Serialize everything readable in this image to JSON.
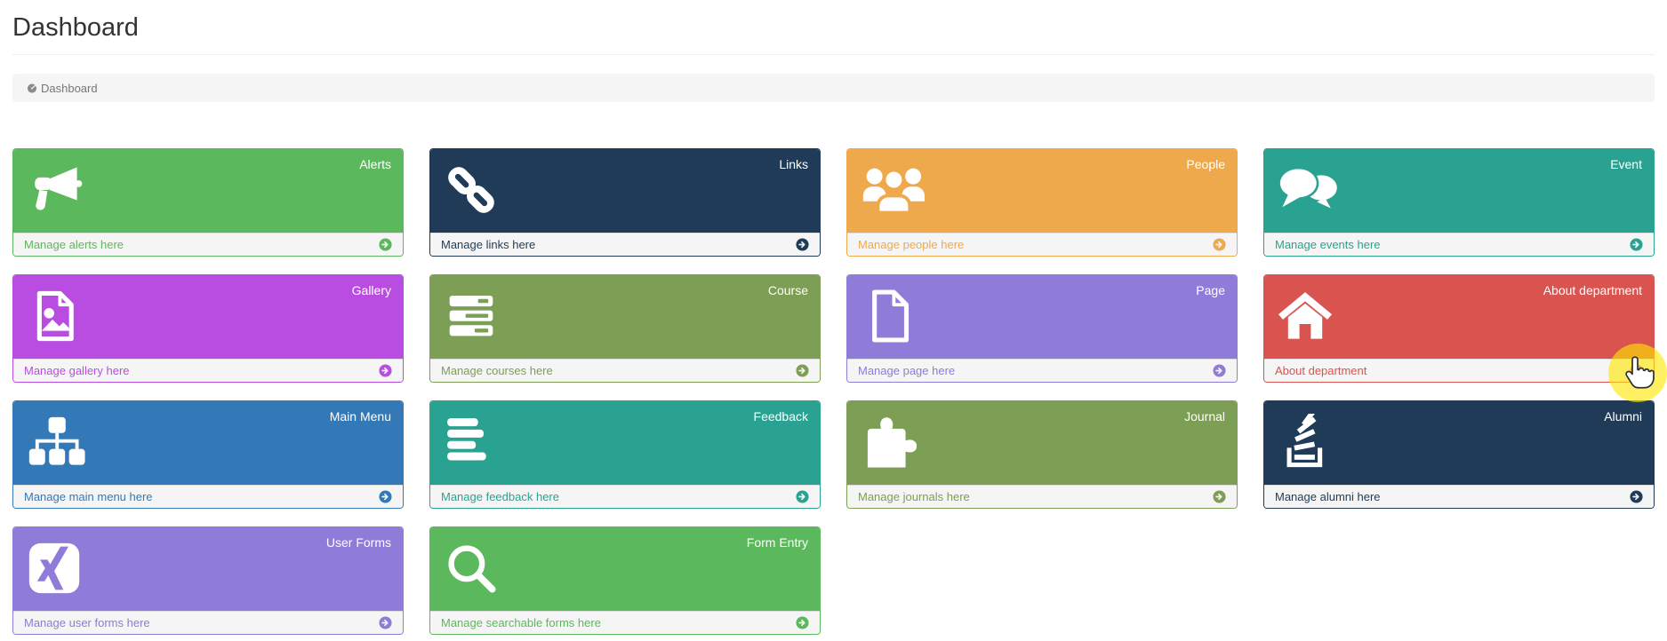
{
  "page": {
    "title": "Dashboard"
  },
  "breadcrumb": {
    "items": [
      {
        "label": "Dashboard",
        "icon": "dashboard-icon",
        "active": true
      }
    ]
  },
  "footer_arrow_icon": "arrow-circle-right-icon",
  "cursor": {
    "shape": "hand-pointer-cursor",
    "highlight_color": "#ffe600",
    "over": "card-about-department-arrow"
  },
  "cards": [
    {
      "title": "Alerts",
      "footer": "Manage alerts here",
      "color": "#5cb85c",
      "icon": "bullhorn-icon"
    },
    {
      "title": "Links",
      "footer": "Manage links here",
      "color": "#1f3b57",
      "icon": "link-icon"
    },
    {
      "title": "People",
      "footer": "Manage people here",
      "color": "#efa94d",
      "icon": "users-icon"
    },
    {
      "title": "Event",
      "footer": "Manage events here",
      "color": "#2aa291",
      "icon": "comments-icon"
    },
    {
      "title": "Gallery",
      "footer": "Manage gallery here",
      "color": "#b94de1",
      "icon": "image-icon"
    },
    {
      "title": "Course",
      "footer": "Manage courses here",
      "color": "#7d9e55",
      "icon": "server-icon"
    },
    {
      "title": "Page",
      "footer": "Manage page here",
      "color": "#8f7bd8",
      "icon": "file-icon"
    },
    {
      "title": "About department",
      "footer": "About department",
      "color": "#d9534f",
      "icon": "home-icon",
      "hovered": true
    },
    {
      "title": "Main Menu",
      "footer": "Manage main menu here",
      "color": "#3379b7",
      "icon": "sitemap-icon"
    },
    {
      "title": "Feedback",
      "footer": "Manage feedback here",
      "color": "#2aa291",
      "icon": "align-left-icon"
    },
    {
      "title": "Journal",
      "footer": "Manage journals here",
      "color": "#7d9e55",
      "icon": "puzzle-icon"
    },
    {
      "title": "Alumni",
      "footer": "Manage alumni here",
      "color": "#1f3b57",
      "icon": "stack-overflow-icon"
    },
    {
      "title": "User Forms",
      "footer": "Manage user forms here",
      "color": "#8f7bd8",
      "icon": "xing-icon"
    },
    {
      "title": "Form Entry",
      "footer": "Manage searchable forms here",
      "color": "#5cb85c",
      "icon": "search-icon"
    }
  ]
}
